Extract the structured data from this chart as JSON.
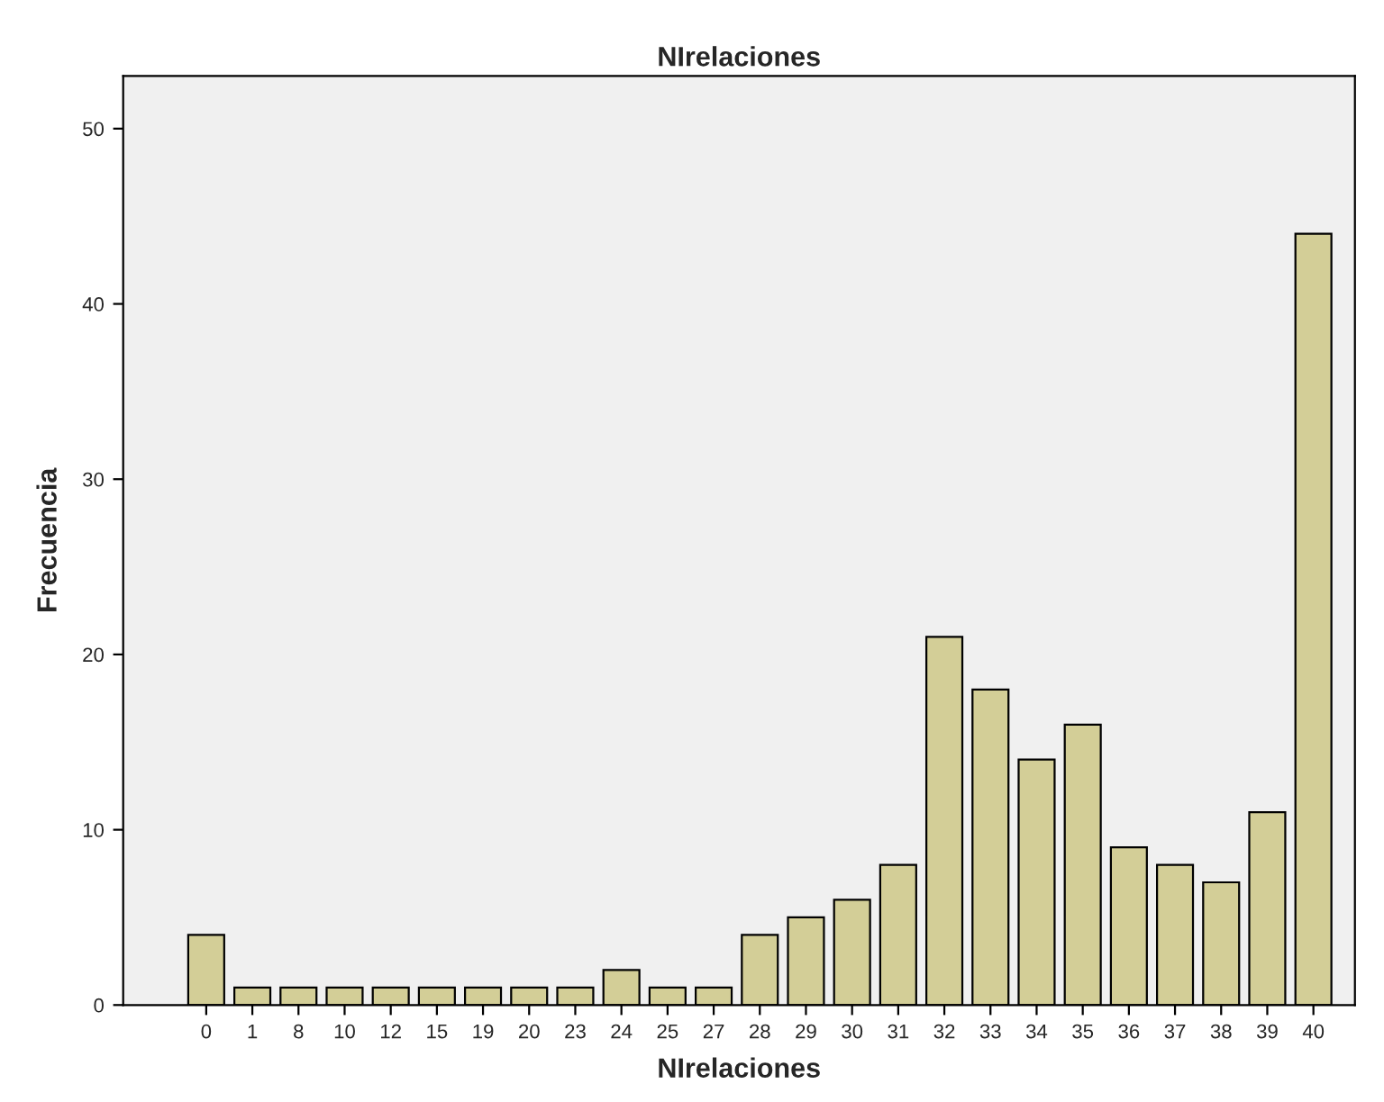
{
  "chart_data": {
    "type": "bar",
    "title": "NIrelaciones",
    "xlabel": "NIrelaciones",
    "ylabel": "Frecuencia",
    "categories": [
      "0",
      "1",
      "8",
      "10",
      "12",
      "15",
      "19",
      "20",
      "23",
      "24",
      "25",
      "27",
      "28",
      "29",
      "30",
      "31",
      "32",
      "33",
      "34",
      "35",
      "36",
      "37",
      "38",
      "39",
      "40"
    ],
    "values": [
      4,
      1,
      1,
      1,
      1,
      1,
      1,
      1,
      1,
      2,
      1,
      1,
      4,
      5,
      6,
      8,
      21,
      18,
      14,
      16,
      9,
      8,
      7,
      11,
      44
    ],
    "color": "#d3ce97",
    "ylim": [
      0,
      53
    ],
    "yticks": [
      0,
      10,
      20,
      30,
      40,
      50
    ],
    "grid": false,
    "legend": false
  }
}
